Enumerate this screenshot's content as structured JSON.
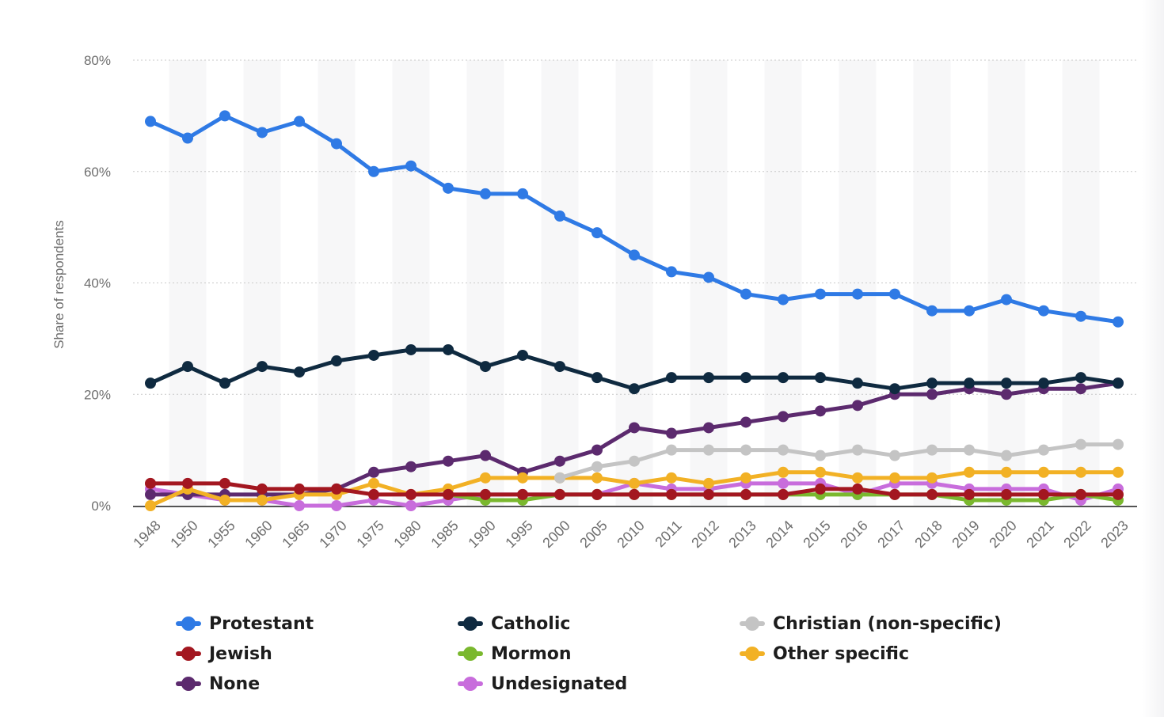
{
  "chart_data": {
    "type": "line",
    "title": "",
    "xlabel": "",
    "ylabel": "Share of respondents",
    "ylim": [
      0,
      80
    ],
    "y_ticks": [
      "0%",
      "20%",
      "40%",
      "60%",
      "80%"
    ],
    "grid": "horizontal dotted",
    "legend_position": "bottom",
    "categories": [
      "1948",
      "1950",
      "1955",
      "1960",
      "1965",
      "1970",
      "1975",
      "1980",
      "1985",
      "1990",
      "1995",
      "2000",
      "2005",
      "2010",
      "2011",
      "2012",
      "2013",
      "2014",
      "2015",
      "2016",
      "2017",
      "2018",
      "2019",
      "2020",
      "2021",
      "2022",
      "2023"
    ],
    "series": [
      {
        "name": "Protestant",
        "color": "#2f7ae5",
        "values": [
          69,
          66,
          70,
          67,
          69,
          65,
          60,
          61,
          57,
          56,
          56,
          52,
          49,
          45,
          42,
          41,
          38,
          37,
          38,
          38,
          38,
          35,
          35,
          37,
          35,
          34,
          33
        ]
      },
      {
        "name": "Catholic",
        "color": "#0f2a40",
        "values": [
          22,
          25,
          22,
          25,
          24,
          26,
          27,
          28,
          28,
          25,
          27,
          25,
          23,
          21,
          23,
          23,
          23,
          23,
          23,
          22,
          21,
          22,
          22,
          22,
          22,
          23,
          22
        ]
      },
      {
        "name": "Christian (non-specific)",
        "color": "#c4c4c4",
        "values": [
          null,
          null,
          null,
          null,
          null,
          null,
          null,
          null,
          null,
          null,
          null,
          5,
          7,
          8,
          10,
          10,
          10,
          10,
          9,
          10,
          9,
          10,
          10,
          9,
          10,
          11,
          11
        ]
      },
      {
        "name": "Jewish",
        "color": "#a31720",
        "values": [
          4,
          4,
          4,
          3,
          3,
          3,
          2,
          2,
          2,
          2,
          2,
          2,
          2,
          2,
          2,
          2,
          2,
          2,
          3,
          3,
          2,
          2,
          2,
          2,
          2,
          2,
          2
        ]
      },
      {
        "name": "Mormon",
        "color": "#7ab82e",
        "values": [
          null,
          null,
          null,
          null,
          null,
          null,
          null,
          null,
          2,
          1,
          1,
          2,
          2,
          2,
          2,
          2,
          2,
          2,
          2,
          2,
          2,
          2,
          1,
          1,
          1,
          2,
          1
        ]
      },
      {
        "name": "Other specific",
        "color": "#f2b125",
        "values": [
          0,
          3,
          1,
          1,
          2,
          2,
          4,
          2,
          3,
          5,
          5,
          5,
          5,
          4,
          5,
          4,
          5,
          6,
          6,
          5,
          5,
          5,
          6,
          6,
          6,
          6,
          6
        ]
      },
      {
        "name": "None",
        "color": "#5c2a6e",
        "values": [
          2,
          2,
          2,
          2,
          2,
          3,
          6,
          7,
          8,
          9,
          6,
          8,
          10,
          14,
          13,
          14,
          15,
          16,
          17,
          18,
          20,
          20,
          21,
          20,
          21,
          21,
          22
        ]
      },
      {
        "name": "Undesignated",
        "color": "#c86ddc",
        "values": [
          3,
          2,
          1,
          1,
          0,
          0,
          1,
          0,
          1,
          2,
          2,
          2,
          2,
          4,
          3,
          3,
          4,
          4,
          4,
          2,
          4,
          4,
          3,
          3,
          3,
          1,
          3
        ]
      }
    ]
  }
}
